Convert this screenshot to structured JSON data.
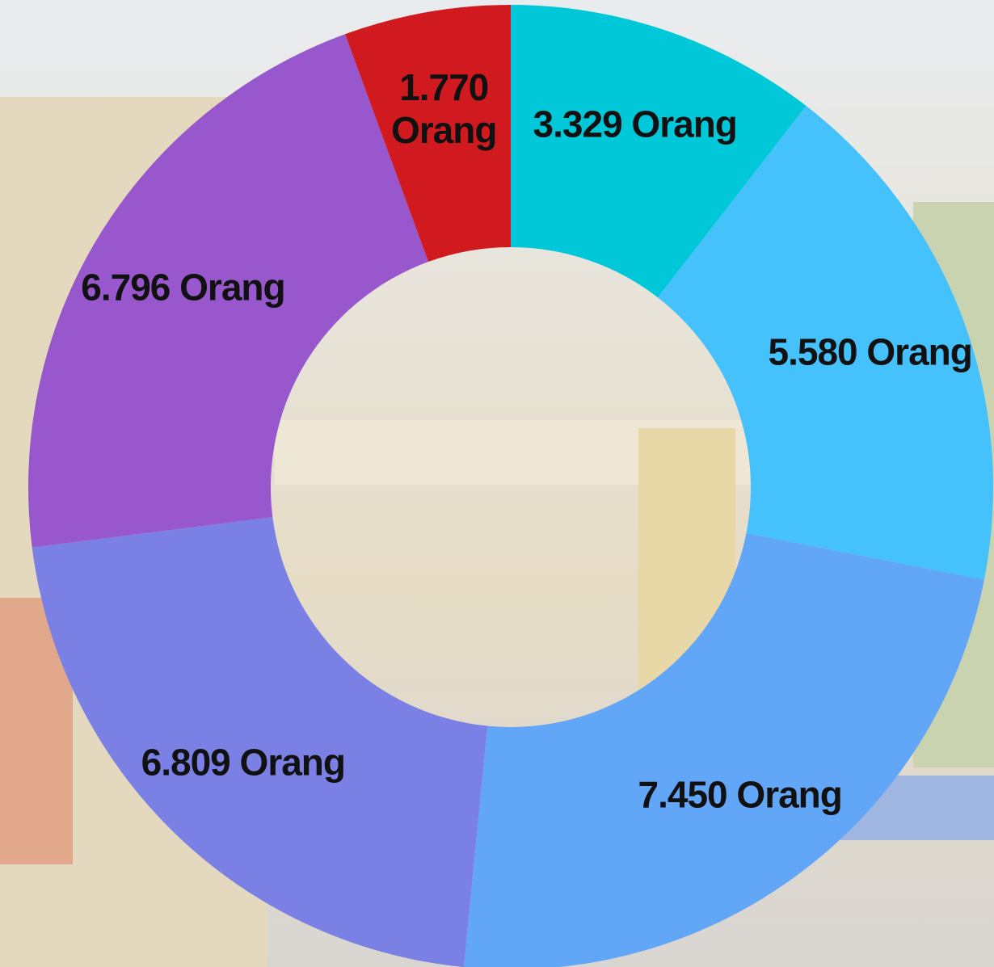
{
  "chart_data": {
    "type": "donut",
    "categories": [
      null,
      null,
      null,
      null,
      null,
      null
    ],
    "values": [
      3329,
      5580,
      7450,
      6809,
      6796,
      1770
    ],
    "value_labels": [
      "3.329 Orang",
      "5.580 Orang",
      "7.450 Orang",
      "6.809 Orang",
      "6.796 Orang",
      "1.770 Orang"
    ],
    "colors": [
      "#00c8d9",
      "#45c1fb",
      "#62a6f7",
      "#7b80e4",
      "#9857cc",
      "#d01a1f"
    ]
  }
}
